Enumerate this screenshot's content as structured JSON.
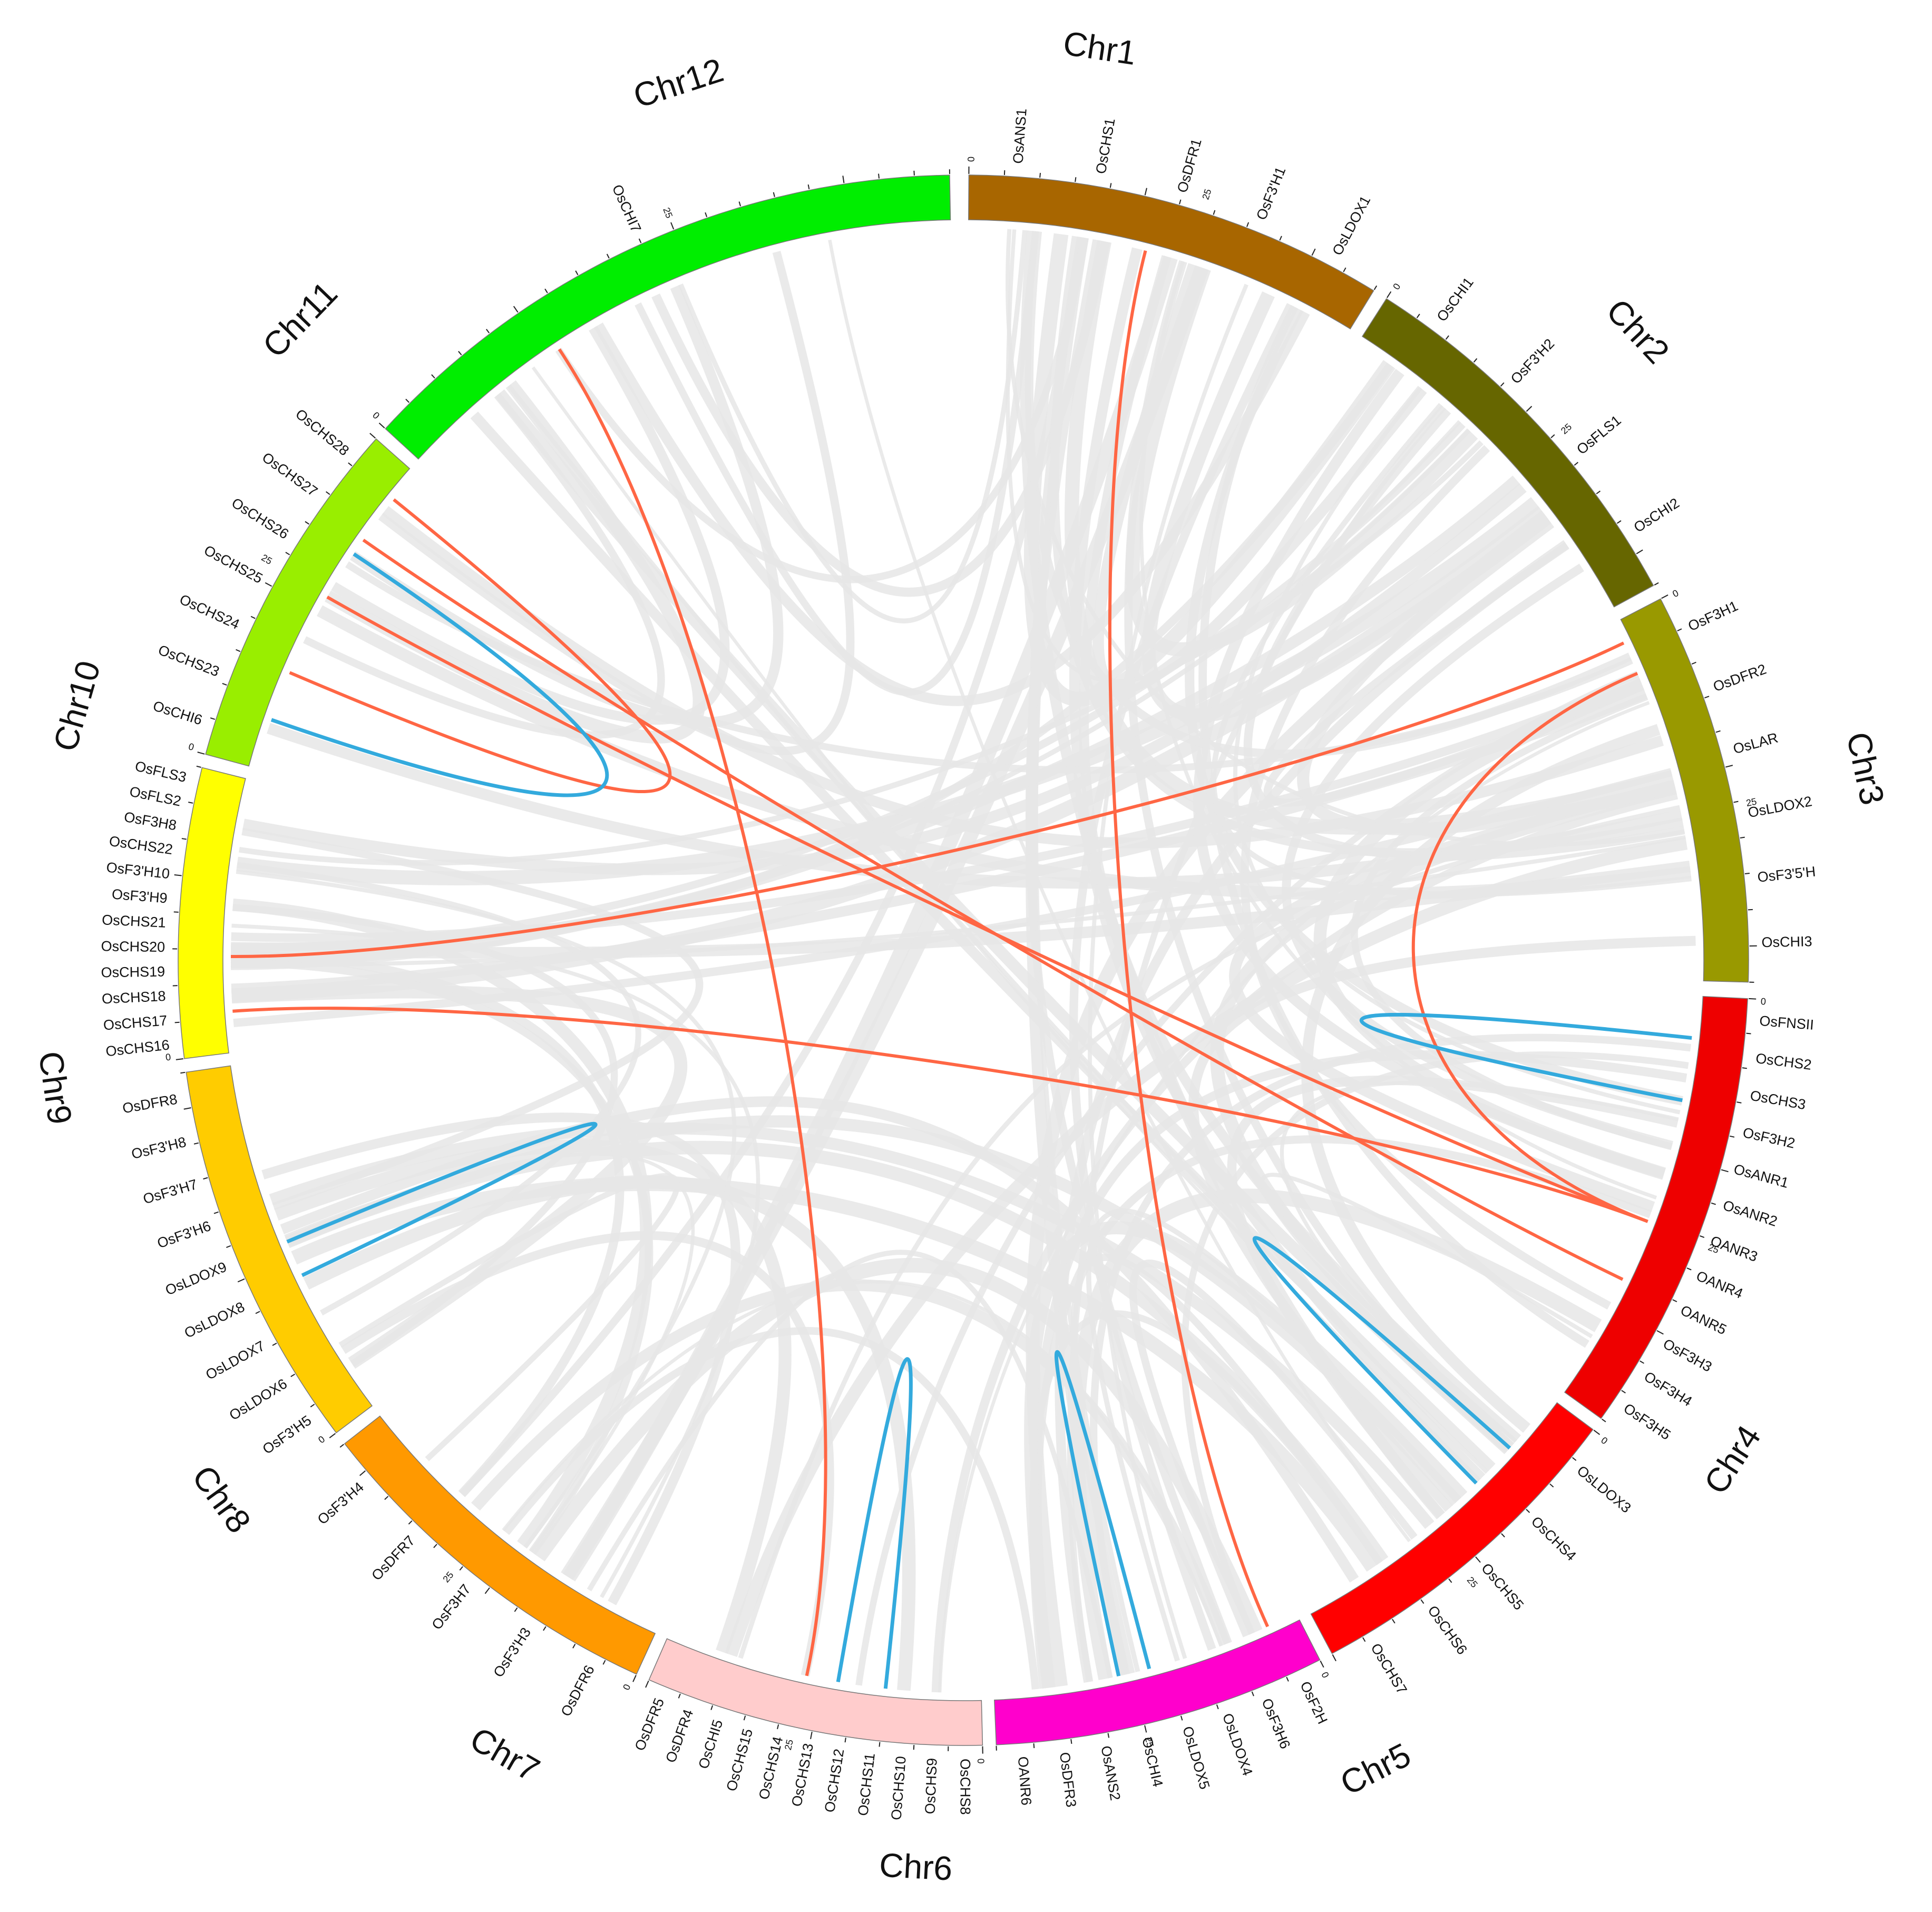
{
  "chromosomes": [
    {
      "name": "Chr1",
      "color": "#a86600",
      "ticks": [
        "0",
        "25"
      ]
    },
    {
      "name": "Chr2",
      "color": "#666600",
      "ticks": [
        "0",
        "25"
      ]
    },
    {
      "name": "Chr3",
      "color": "#999900",
      "ticks": [
        "0",
        "25"
      ]
    },
    {
      "name": "Chr4",
      "color": "#ee0000",
      "ticks": [
        "0",
        "25"
      ]
    },
    {
      "name": "Chr5",
      "color": "#ff0000",
      "ticks": [
        "0",
        "25"
      ]
    },
    {
      "name": "Chr6",
      "color": "#ff00cc",
      "ticks": [
        "0",
        "25"
      ]
    },
    {
      "name": "Chr7",
      "color": "#ffcccc",
      "ticks": [
        "0",
        "25"
      ]
    },
    {
      "name": "Chr8",
      "color": "#ff9900",
      "ticks": [
        "0",
        "25"
      ]
    },
    {
      "name": "Chr9",
      "color": "#ffcc00",
      "ticks": [
        "0"
      ]
    },
    {
      "name": "Chr10",
      "color": "#ffff00",
      "ticks": [
        "0"
      ]
    },
    {
      "name": "Chr11",
      "color": "#99ee00",
      "ticks": [
        "0",
        "25"
      ]
    },
    {
      "name": "Chr12",
      "color": "#00ee00",
      "ticks": [
        "0",
        "25"
      ]
    }
  ],
  "gene_labels": [
    {
      "chr": "Chr1",
      "text": "OsANS1"
    },
    {
      "chr": "Chr1",
      "text": "OsCHS1"
    },
    {
      "chr": "Chr1",
      "text": "OsDFR1"
    },
    {
      "chr": "Chr1",
      "text": "OsF3'H1"
    },
    {
      "chr": "Chr1",
      "text": "OsLDOX1"
    },
    {
      "chr": "Chr2",
      "text": "OsCHI1"
    },
    {
      "chr": "Chr2",
      "text": "OsF3'H2"
    },
    {
      "chr": "Chr2",
      "text": "OsFLS1"
    },
    {
      "chr": "Chr2",
      "text": "OsCHI2"
    },
    {
      "chr": "Chr3",
      "text": "OsF3H1"
    },
    {
      "chr": "Chr3",
      "text": "OsDFR2"
    },
    {
      "chr": "Chr3",
      "text": "OsLAR"
    },
    {
      "chr": "Chr3",
      "text": "OsLDOX2"
    },
    {
      "chr": "Chr3",
      "text": "OsF3'5'H"
    },
    {
      "chr": "Chr3",
      "text": "OsCHI3"
    },
    {
      "chr": "Chr4",
      "text": "OsFNSII"
    },
    {
      "chr": "Chr4",
      "text": "OsCHS2"
    },
    {
      "chr": "Chr4",
      "text": "OsCHS3"
    },
    {
      "chr": "Chr4",
      "text": "OsF3H2"
    },
    {
      "chr": "Chr4",
      "text": "OsANR1"
    },
    {
      "chr": "Chr4",
      "text": "OsANR2"
    },
    {
      "chr": "Chr4",
      "text": "OANR3"
    },
    {
      "chr": "Chr4",
      "text": "OANR4"
    },
    {
      "chr": "Chr4",
      "text": "OANR5"
    },
    {
      "chr": "Chr4",
      "text": "OsF3H3"
    },
    {
      "chr": "Chr4",
      "text": "OsF3H4"
    },
    {
      "chr": "Chr4",
      "text": "OsF3H5"
    },
    {
      "chr": "Chr5",
      "text": "OsLDOX3"
    },
    {
      "chr": "Chr5",
      "text": "OsCHS4"
    },
    {
      "chr": "Chr5",
      "text": "OsCHS5"
    },
    {
      "chr": "Chr5",
      "text": "OsCHS6"
    },
    {
      "chr": "Chr5",
      "text": "OsCHS7"
    },
    {
      "chr": "Chr6",
      "text": "OsF2H"
    },
    {
      "chr": "Chr6",
      "text": "OsF3H6"
    },
    {
      "chr": "Chr6",
      "text": "OsLDOX4"
    },
    {
      "chr": "Chr6",
      "text": "OsLDOX5"
    },
    {
      "chr": "Chr6",
      "text": "OsCHI4"
    },
    {
      "chr": "Chr6",
      "text": "OsANS2"
    },
    {
      "chr": "Chr6",
      "text": "OsDFR3"
    },
    {
      "chr": "Chr6",
      "text": "OANR6"
    },
    {
      "chr": "Chr7",
      "text": "OsCHS8"
    },
    {
      "chr": "Chr7",
      "text": "OsCHS9"
    },
    {
      "chr": "Chr7",
      "text": "OsCHS10"
    },
    {
      "chr": "Chr7",
      "text": "OsCHS11"
    },
    {
      "chr": "Chr7",
      "text": "OsCHS12"
    },
    {
      "chr": "Chr7",
      "text": "OsCHS13"
    },
    {
      "chr": "Chr7",
      "text": "OsCHS14"
    },
    {
      "chr": "Chr7",
      "text": "OsCHS15"
    },
    {
      "chr": "Chr7",
      "text": "OsCHI5"
    },
    {
      "chr": "Chr7",
      "text": "OsDFR4"
    },
    {
      "chr": "Chr7",
      "text": "OsDFR5"
    },
    {
      "chr": "Chr8",
      "text": "OsDFR6"
    },
    {
      "chr": "Chr8",
      "text": "OsF3'H3"
    },
    {
      "chr": "Chr8",
      "text": "OsF3H7"
    },
    {
      "chr": "Chr8",
      "text": "OsDFR7"
    },
    {
      "chr": "Chr8",
      "text": "OsF3'H4"
    },
    {
      "chr": "Chr9",
      "text": "OsF3'H5"
    },
    {
      "chr": "Chr9",
      "text": "OsLDOX6"
    },
    {
      "chr": "Chr9",
      "text": "OsLDOX7"
    },
    {
      "chr": "Chr9",
      "text": "OsLDOX8"
    },
    {
      "chr": "Chr9",
      "text": "OsLDOX9"
    },
    {
      "chr": "Chr9",
      "text": "OsF3'H6"
    },
    {
      "chr": "Chr9",
      "text": "OsF3'H7"
    },
    {
      "chr": "Chr9",
      "text": "OsF3'H8"
    },
    {
      "chr": "Chr9",
      "text": "OsDFR8"
    },
    {
      "chr": "Chr10",
      "text": "OsCHS16"
    },
    {
      "chr": "Chr10",
      "text": "OsCHS17"
    },
    {
      "chr": "Chr10",
      "text": "OsCHS18"
    },
    {
      "chr": "Chr10",
      "text": "OsCHS19"
    },
    {
      "chr": "Chr10",
      "text": "OsCHS20"
    },
    {
      "chr": "Chr10",
      "text": "OsCHS21"
    },
    {
      "chr": "Chr10",
      "text": "OsF3'H9"
    },
    {
      "chr": "Chr10",
      "text": "OsF3'H10"
    },
    {
      "chr": "Chr10",
      "text": "OsCHS22"
    },
    {
      "chr": "Chr10",
      "text": "OsF3H8"
    },
    {
      "chr": "Chr10",
      "text": "OsFLS2"
    },
    {
      "chr": "Chr10",
      "text": "OsFLS3"
    },
    {
      "chr": "Chr11",
      "text": "OsCHI6"
    },
    {
      "chr": "Chr11",
      "text": "OsCHS23"
    },
    {
      "chr": "Chr11",
      "text": "OsCHS24"
    },
    {
      "chr": "Chr11",
      "text": "OsCHS25"
    },
    {
      "chr": "Chr11",
      "text": "OsCHS26"
    },
    {
      "chr": "Chr11",
      "text": "OsCHS27"
    },
    {
      "chr": "Chr11",
      "text": "OsCHS28"
    },
    {
      "chr": "Chr12",
      "text": "OsCHI7"
    }
  ],
  "link_colors": {
    "background": "#e6e6e6",
    "segmental": "#ff6644",
    "tandem": "#33aadd"
  },
  "segmental_links": [
    {
      "from": "Chr1",
      "to": "Chr6"
    },
    {
      "from": "Chr11",
      "to": "Chr4"
    },
    {
      "from": "Chr11",
      "to": "Chr4"
    },
    {
      "from": "Chr10",
      "to": "Chr3"
    },
    {
      "from": "Chr10",
      "to": "Chr4"
    },
    {
      "from": "Chr12",
      "to": "Chr7"
    },
    {
      "from": "Chr3",
      "to": "Chr4"
    },
    {
      "from": "Chr11",
      "to": "Chr11"
    }
  ],
  "tandem_links": [
    {
      "from": "Chr11",
      "to": "Chr11"
    },
    {
      "from": "Chr9",
      "to": "Chr9"
    },
    {
      "from": "Chr7",
      "to": "Chr7"
    },
    {
      "from": "Chr6",
      "to": "Chr6"
    },
    {
      "from": "Chr5",
      "to": "Chr5"
    },
    {
      "from": "Chr4",
      "to": "Chr4"
    }
  ]
}
